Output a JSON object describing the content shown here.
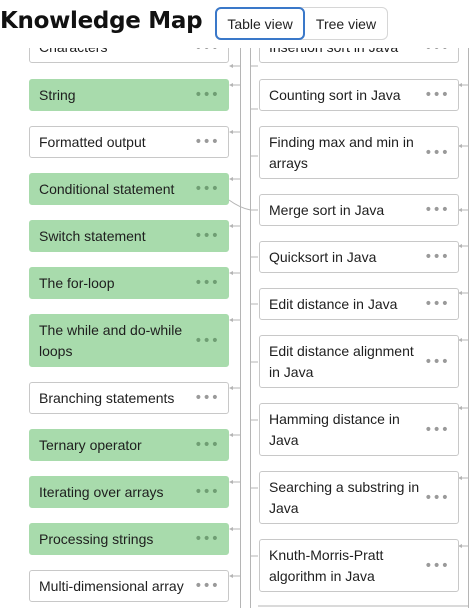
{
  "header": {
    "title": "Knowledge Map",
    "view_toggle": {
      "table_label": "Table view",
      "tree_label": "Tree view",
      "selected": "Table view"
    }
  },
  "left_column": [
    {
      "label": "Characters",
      "status": "not-learned"
    },
    {
      "label": "String",
      "status": "learned"
    },
    {
      "label": "Formatted output",
      "status": "not-learned"
    },
    {
      "label": "Conditional statement",
      "status": "learned"
    },
    {
      "label": "Switch statement",
      "status": "learned"
    },
    {
      "label": "The for-loop",
      "status": "learned"
    },
    {
      "label": "The while and do-while loops",
      "status": "learned"
    },
    {
      "label": "Branching statements",
      "status": "not-learned"
    },
    {
      "label": "Ternary operator",
      "status": "learned"
    },
    {
      "label": "Iterating over arrays",
      "status": "learned"
    },
    {
      "label": "Processing strings",
      "status": "learned"
    },
    {
      "label": "Multi-dimensional array",
      "status": "not-learned"
    }
  ],
  "right_column": [
    {
      "label": "Insertion sort in Java",
      "status": "not-learned"
    },
    {
      "label": "Counting sort in Java",
      "status": "not-learned"
    },
    {
      "label": "Finding max and min in arrays",
      "status": "not-learned"
    },
    {
      "label": "Merge sort in Java",
      "status": "not-learned"
    },
    {
      "label": "Quicksort in Java",
      "status": "not-learned"
    },
    {
      "label": "Edit distance in Java",
      "status": "not-learned"
    },
    {
      "label": "Edit distance alignment in Java",
      "status": "not-learned"
    },
    {
      "label": "Hamming distance in Java",
      "status": "not-learned"
    },
    {
      "label": "Searching a substring in Java",
      "status": "not-learned"
    },
    {
      "label": "Knuth-Morris-Pratt algorithm in Java",
      "status": "not-learned"
    }
  ],
  "menu_icon": "more-horizontal-icon",
  "colors": {
    "learned": "#a8dbac",
    "not_learned": "#ffffff",
    "border": "#c8c8c8",
    "accent": "#3a78c9",
    "connector": "#b5b5b5"
  }
}
